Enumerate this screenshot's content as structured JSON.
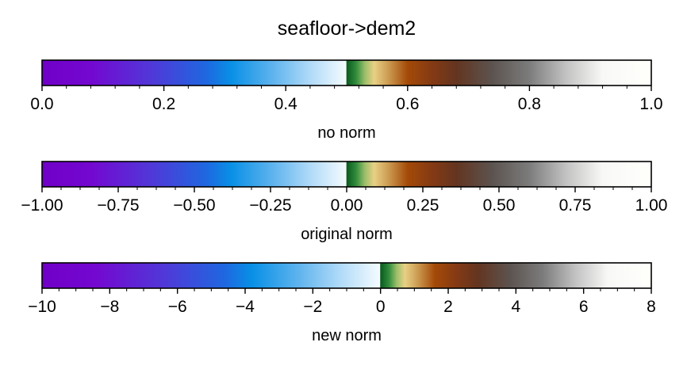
{
  "chart_data": {
    "type": "colorbar",
    "title": "seafloor->dem2",
    "colormap": {
      "name": "seafloor->dem2",
      "stops": [
        {
          "pos": 0.0,
          "color": "#7000c8"
        },
        {
          "pos": 0.08,
          "color": "#7408d0"
        },
        {
          "pos": 0.18,
          "color": "#5038d8"
        },
        {
          "pos": 0.27,
          "color": "#1e68e0"
        },
        {
          "pos": 0.31,
          "color": "#0890e6"
        },
        {
          "pos": 0.38,
          "color": "#60b4ee"
        },
        {
          "pos": 0.44,
          "color": "#b0daf8"
        },
        {
          "pos": 0.499,
          "color": "#f4fbff"
        },
        {
          "pos": 0.5,
          "color": "#0b5a1e"
        },
        {
          "pos": 0.515,
          "color": "#2e8a3a"
        },
        {
          "pos": 0.53,
          "color": "#9cbe6a"
        },
        {
          "pos": 0.545,
          "color": "#e8d084"
        },
        {
          "pos": 0.565,
          "color": "#d0a45a"
        },
        {
          "pos": 0.6,
          "color": "#a44a08"
        },
        {
          "pos": 0.64,
          "color": "#843a14"
        },
        {
          "pos": 0.68,
          "color": "#633520"
        },
        {
          "pos": 0.74,
          "color": "#5c5450"
        },
        {
          "pos": 0.8,
          "color": "#7c7c7c"
        },
        {
          "pos": 0.86,
          "color": "#c2c2c2"
        },
        {
          "pos": 0.92,
          "color": "#f8f8f6"
        },
        {
          "pos": 1.0,
          "color": "#fffffc"
        }
      ]
    },
    "colorbars": [
      {
        "xlabel": "no norm",
        "xlim": [
          0.0,
          1.0
        ],
        "center": 0.5,
        "ticks": [
          0.0,
          0.2,
          0.4,
          0.6,
          0.8,
          1.0
        ],
        "tick_labels": [
          "0.0",
          "0.2",
          "0.4",
          "0.6",
          "0.8",
          "1.0"
        ],
        "minor_step": 0.04
      },
      {
        "xlabel": "original norm",
        "xlim": [
          -1.0,
          1.0
        ],
        "center": 0.0,
        "ticks": [
          -1.0,
          -0.75,
          -0.5,
          -0.25,
          0.0,
          0.25,
          0.5,
          0.75,
          1.0
        ],
        "tick_labels": [
          "−1.00",
          "−0.75",
          "−0.50",
          "−0.25",
          "0.00",
          "0.25",
          "0.50",
          "0.75",
          "1.00"
        ],
        "minor_step": 0.0625
      },
      {
        "xlabel": "new norm",
        "xlim": [
          -10,
          8
        ],
        "center": 0,
        "ticks": [
          -10,
          -8,
          -6,
          -4,
          -2,
          0,
          2,
          4,
          6,
          8
        ],
        "tick_labels": [
          "−10",
          "−8",
          "−6",
          "−4",
          "−2",
          "0",
          "2",
          "4",
          "6",
          "8"
        ],
        "minor_step": 0.5
      }
    ]
  }
}
